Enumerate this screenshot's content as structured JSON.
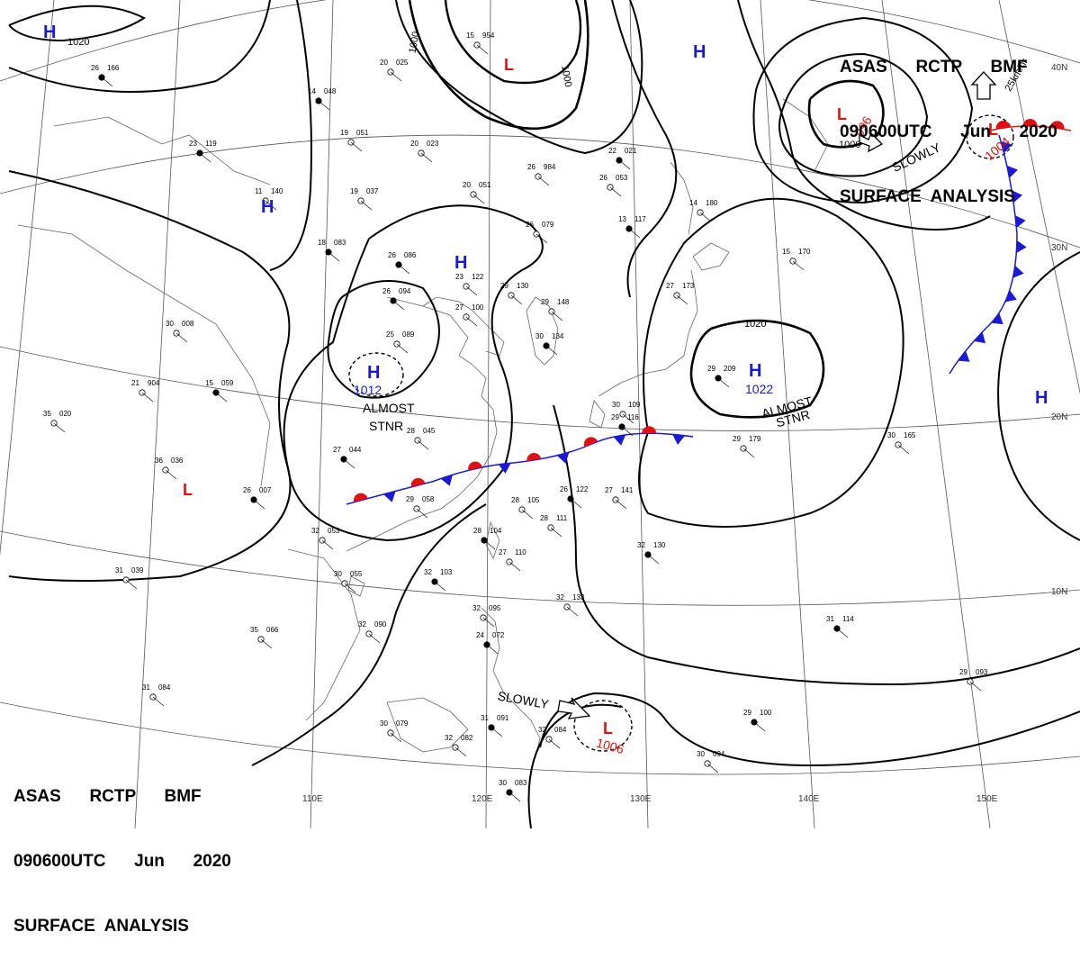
{
  "header_top": {
    "line1": "ASAS      RCTP      BMF",
    "line2": "090600UTC      Jun      2020",
    "line3": "SURFACE  ANALYSIS"
  },
  "header_bottom": {
    "line1": "ASAS      RCTP      BMF",
    "line2": "090600UTC      Jun      2020",
    "line3": "SURFACE  ANALYSIS"
  },
  "speed_label": "25km/hr",
  "longitudes": [
    "110E",
    "120E",
    "130E",
    "140E",
    "150E"
  ],
  "latitudes": [
    "40N",
    "30N",
    "20N",
    "10N"
  ],
  "isobar_labels": [
    "1020",
    "1000",
    "1000",
    "1000",
    "1020"
  ],
  "pressure_centers": [
    {
      "type": "H",
      "value": "",
      "color": "#1a1ad4"
    },
    {
      "type": "L",
      "value": "",
      "color": "#e01010"
    },
    {
      "type": "H",
      "value": "",
      "color": "#1a1ad4"
    },
    {
      "type": "L",
      "value": "996",
      "color": "#e01010"
    },
    {
      "type": "L",
      "value": "1004",
      "color": "#e01010"
    },
    {
      "type": "H",
      "value": "",
      "color": "#1a1ad4"
    },
    {
      "type": "H",
      "value": "",
      "color": "#1a1ad4"
    },
    {
      "type": "H",
      "value": "1012",
      "color": "#1a1ad4"
    },
    {
      "type": "H",
      "value": "1022",
      "color": "#1a1ad4"
    },
    {
      "type": "H",
      "value": "",
      "color": "#1a1ad4"
    },
    {
      "type": "L",
      "value": "",
      "color": "#e01010"
    },
    {
      "type": "L",
      "value": "1006",
      "color": "#e01010"
    }
  ],
  "annotations": [
    {
      "text": "SLOWLY"
    },
    {
      "text": "ALMOST"
    },
    {
      "text": "STNR"
    },
    {
      "text": "ALMOST"
    },
    {
      "text": "STNR"
    },
    {
      "text": "SLOWLY"
    }
  ],
  "fronts": {
    "warm_color": "#e01010",
    "cold_color": "#1a1ad4"
  },
  "station_plots": [
    {
      "t": "26",
      "p": "166"
    },
    {
      "t": "20",
      "p": "025"
    },
    {
      "t": "15",
      "p": "954"
    },
    {
      "t": "14",
      "p": "048"
    },
    {
      "t": "19",
      "p": "051"
    },
    {
      "t": "20",
      "p": "023"
    },
    {
      "t": "23",
      "p": "119"
    },
    {
      "t": "11",
      "p": "140"
    },
    {
      "t": "19",
      "p": "037"
    },
    {
      "t": "18",
      "p": "083"
    },
    {
      "t": "26",
      "p": "984"
    },
    {
      "t": "20",
      "p": "051"
    },
    {
      "t": "22",
      "p": "021"
    },
    {
      "t": "26",
      "p": "053"
    },
    {
      "t": "26",
      "p": "079"
    },
    {
      "t": "13",
      "p": "117"
    },
    {
      "t": "14",
      "p": "180"
    },
    {
      "t": "15",
      "p": "170"
    },
    {
      "t": "26",
      "p": "086"
    },
    {
      "t": "23",
      "p": "122"
    },
    {
      "t": "29",
      "p": "130"
    },
    {
      "t": "26",
      "p": "094"
    },
    {
      "t": "27",
      "p": "100"
    },
    {
      "t": "29",
      "p": "148"
    },
    {
      "t": "30",
      "p": "134"
    },
    {
      "t": "25",
      "p": "089"
    },
    {
      "t": "27",
      "p": "173"
    },
    {
      "t": "29",
      "p": "209"
    },
    {
      "t": "30",
      "p": "008"
    },
    {
      "t": "21",
      "p": "904"
    },
    {
      "t": "15",
      "p": "059"
    },
    {
      "t": "35",
      "p": "020"
    },
    {
      "t": "30",
      "p": "109"
    },
    {
      "t": "29",
      "p": "116"
    },
    {
      "t": "29",
      "p": "179"
    },
    {
      "t": "30",
      "p": "165"
    },
    {
      "t": "27",
      "p": "044"
    },
    {
      "t": "28",
      "p": "045"
    },
    {
      "t": "36",
      "p": "036"
    },
    {
      "t": "26",
      "p": "007"
    },
    {
      "t": "29",
      "p": "058"
    },
    {
      "t": "28",
      "p": "105"
    },
    {
      "t": "26",
      "p": "122"
    },
    {
      "t": "27",
      "p": "141"
    },
    {
      "t": "32",
      "p": "053"
    },
    {
      "t": "28",
      "p": "104"
    },
    {
      "t": "28",
      "p": "111"
    },
    {
      "t": "27",
      "p": "110"
    },
    {
      "t": "32",
      "p": "130"
    },
    {
      "t": "31",
      "p": "039"
    },
    {
      "t": "30",
      "p": "055"
    },
    {
      "t": "32",
      "p": "103"
    },
    {
      "t": "32",
      "p": "133"
    },
    {
      "t": "32",
      "p": "095"
    },
    {
      "t": "24",
      "p": "072"
    },
    {
      "t": "32",
      "p": "090"
    },
    {
      "t": "35",
      "p": "066"
    },
    {
      "t": "31",
      "p": "114"
    },
    {
      "t": "31",
      "p": "084"
    },
    {
      "t": "29",
      "p": "093"
    },
    {
      "t": "29",
      "p": "100"
    },
    {
      "t": "30",
      "p": "079"
    },
    {
      "t": "32",
      "p": "082"
    },
    {
      "t": "31",
      "p": "091"
    },
    {
      "t": "32",
      "p": "084"
    },
    {
      "t": "30",
      "p": "094"
    },
    {
      "t": "30",
      "p": "083"
    }
  ]
}
